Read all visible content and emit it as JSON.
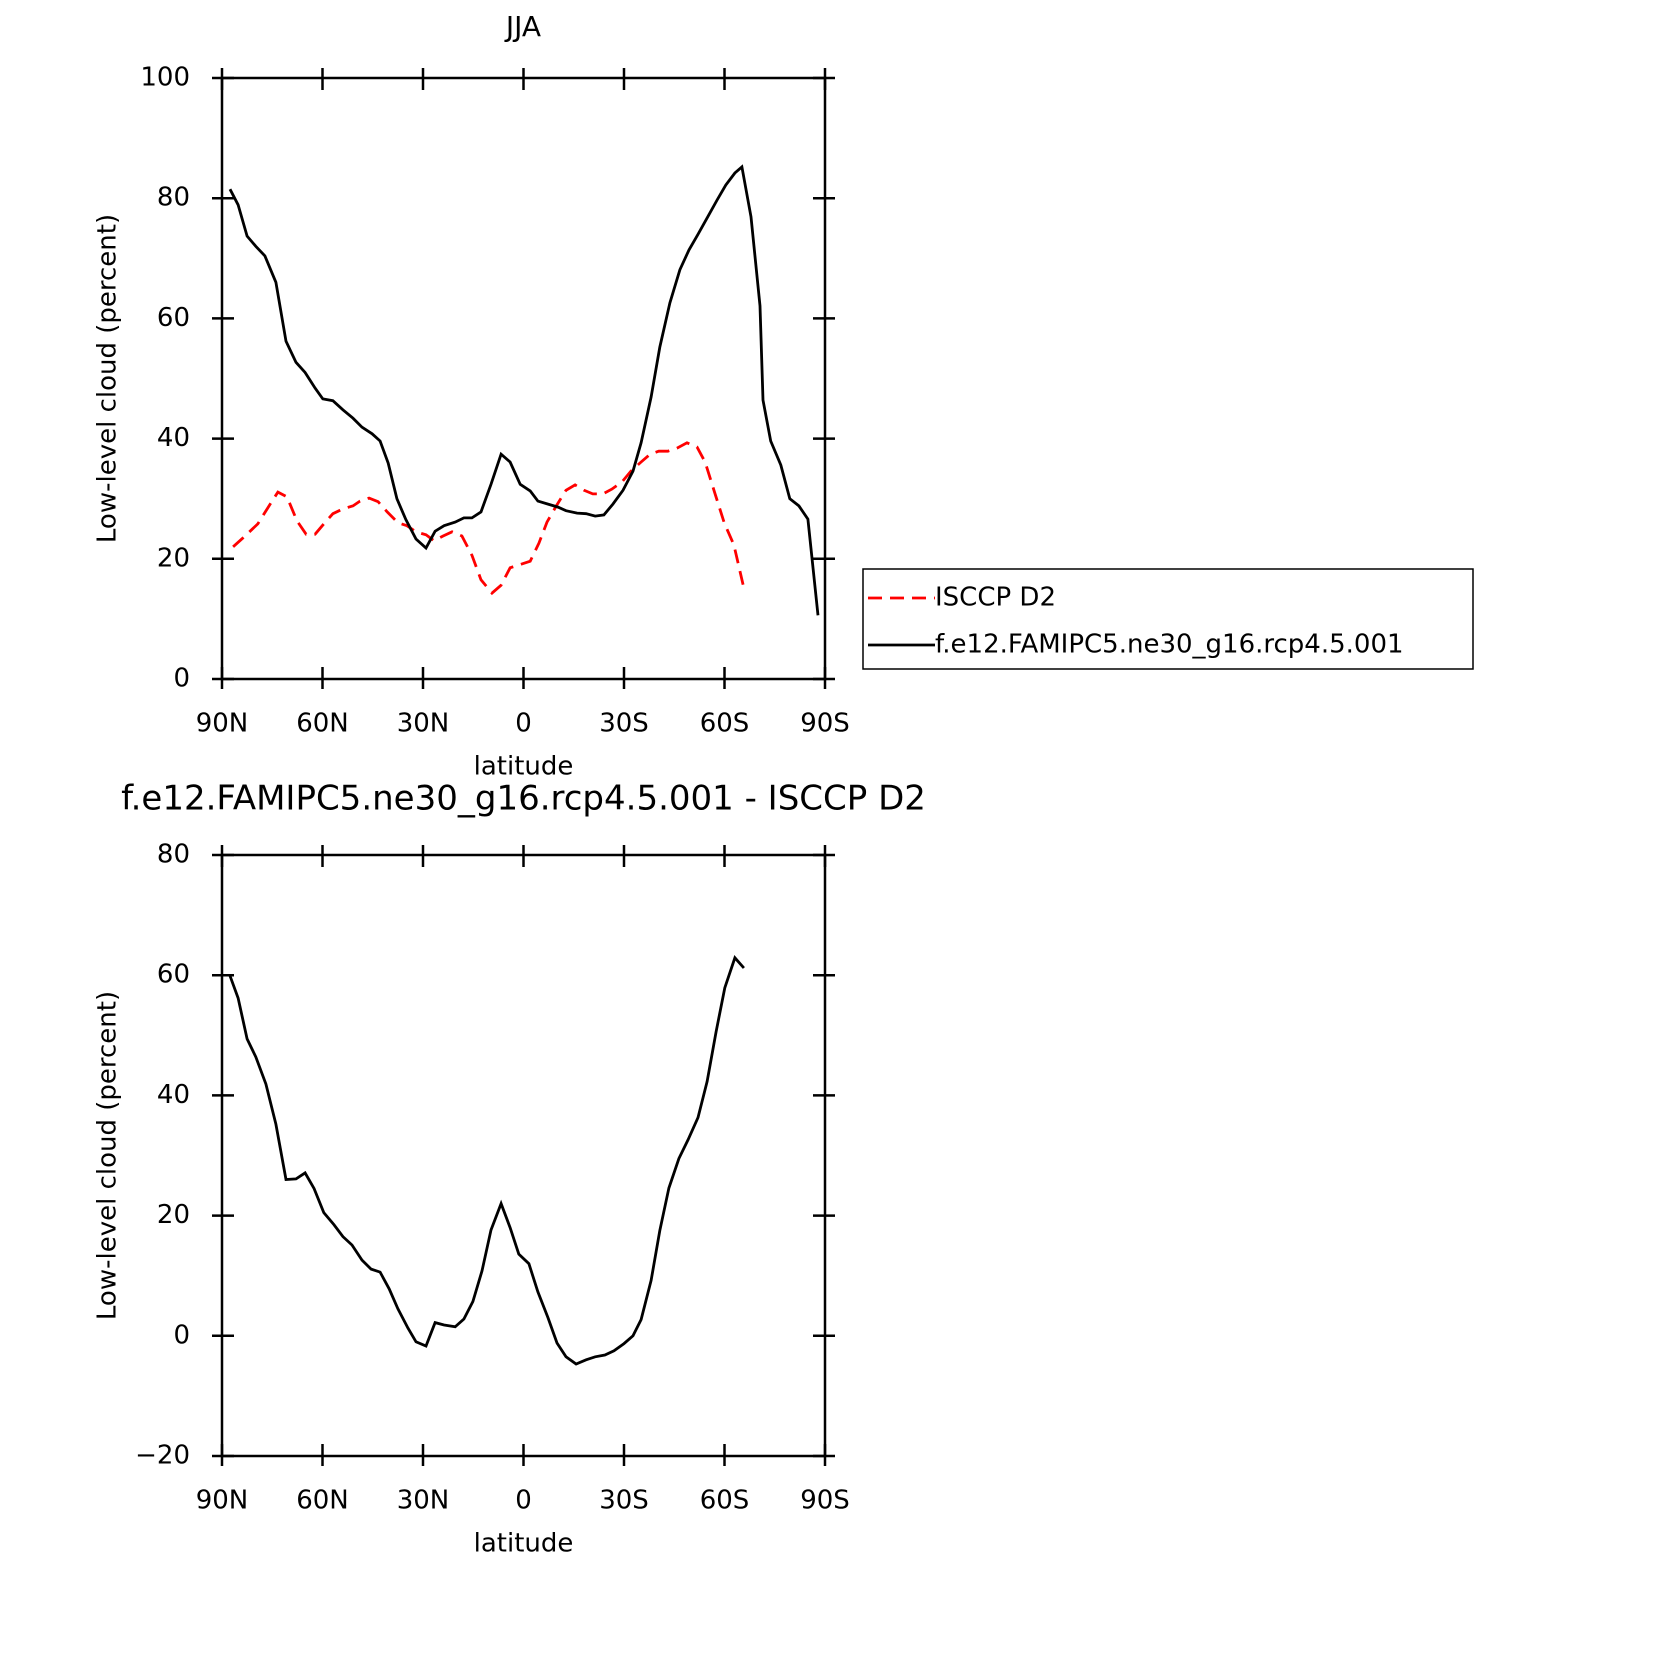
{
  "chart_data": [
    {
      "type": "line",
      "title": "JJA",
      "xlabel": "latitude",
      "ylabel": "Low-level cloud (percent)",
      "xlim": [
        90,
        -90
      ],
      "xticks": [
        {
          "value": 90,
          "label": "90N"
        },
        {
          "value": 60,
          "label": "60N"
        },
        {
          "value": 30,
          "label": "30N"
        },
        0,
        {
          "value": -30,
          "label": "30S"
        },
        {
          "value": -60,
          "label": "60S"
        },
        {
          "value": -90,
          "label": "90S"
        }
      ],
      "ylim": [
        0,
        100
      ],
      "yticks": [
        0,
        20,
        40,
        60,
        80,
        100
      ],
      "legend": "right",
      "series": [
        {
          "name": "ISCCP D2",
          "color": "#ff0000",
          "dash": true,
          "x": [
            86.7,
            83.7,
            81.6,
            79.3,
            76.3,
            73.3,
            70.6,
            67.6,
            64.9,
            62.2,
            59.6,
            56.9,
            53.9,
            50.9,
            48.8,
            46.1,
            43.4,
            40.7,
            37.5,
            34.8,
            32.1,
            29.1,
            26.7,
            24.0,
            21.3,
            18.4,
            15.4,
            12.7,
            9.4,
            6.7,
            4.0,
            0.7,
            -2.0,
            -4.6,
            -7.0,
            -10.0,
            -12.7,
            -15.4,
            -18.1,
            -20.7,
            -23.7,
            -26.4,
            -29.4,
            -32.1,
            -35.1,
            -37.8,
            -40.4,
            -43.1,
            -45.8,
            -48.8,
            -51.8,
            -54.2,
            -57.2,
            -59.9,
            -62.8,
            -65.8
          ],
          "values": [
            22,
            23.5,
            24.6,
            25.8,
            28.5,
            31.1,
            30.3,
            26.3,
            24.1,
            24.1,
            25.8,
            27.5,
            28.3,
            28.8,
            29.6,
            30.1,
            29.5,
            27.8,
            26,
            25.5,
            24.5,
            24,
            23,
            23.8,
            24.5,
            23.8,
            20.6,
            16.5,
            14.3,
            15.6,
            18.5,
            19.1,
            19.6,
            22.6,
            26.1,
            29,
            31.4,
            32.3,
            31.4,
            30.8,
            30.8,
            31.6,
            32.8,
            34.6,
            36.1,
            37.4,
            37.9,
            37.9,
            38.4,
            39.3,
            38.6,
            36.1,
            30.8,
            26,
            22.3,
            15.1
          ]
        },
        {
          "name": "f.e12.FAMIPC5.ne30_g16.rcp4.5.001",
          "color": "#000000",
          "dash": false,
          "x": [
            87.6,
            85.2,
            82.5,
            79.9,
            77.2,
            73.9,
            70.9,
            67.9,
            65.2,
            62.2,
            59.9,
            56.9,
            53.9,
            50.9,
            48.2,
            45.2,
            42.8,
            40.4,
            37.8,
            35.1,
            32.1,
            29.1,
            26.4,
            23.7,
            20.4,
            17.8,
            15.4,
            12.7,
            9.7,
            6.7,
            4.0,
            1.0,
            -2.0,
            -4.3,
            -7.3,
            -10.3,
            -12.7,
            -16.0,
            -18.7,
            -21.4,
            -24.0,
            -26.7,
            -29.7,
            -32.7,
            -35.1,
            -38.1,
            -40.7,
            -43.7,
            -46.7,
            -49.4,
            -52.1,
            -55.1,
            -57.8,
            -60.4,
            -63.1,
            -65.2,
            -67.9,
            -70.6,
            -71.5,
            -73.8,
            -76.8,
            -79.5,
            -82.2,
            -84.9,
            -87.9
          ],
          "values": [
            81.5,
            78.9,
            73.7,
            72,
            70.4,
            66,
            56.2,
            52.7,
            51,
            48.4,
            46.6,
            46.3,
            44.8,
            43.4,
            41.9,
            40.8,
            39.6,
            35.9,
            30,
            26.5,
            23.3,
            21.8,
            24.6,
            25.5,
            26.1,
            26.8,
            26.8,
            27.8,
            32.4,
            37.4,
            36.1,
            32.4,
            31.3,
            29.6,
            29.1,
            28.6,
            28,
            27.6,
            27.5,
            27.1,
            27.3,
            29.1,
            31.4,
            34.6,
            39.3,
            46.9,
            55.2,
            62.6,
            68.1,
            71.4,
            74,
            77,
            79.7,
            82.2,
            84.2,
            85.2,
            76.9,
            62.1,
            46.4,
            39.6,
            35.6,
            30,
            28.8,
            26.6,
            10.6
          ]
        }
      ]
    },
    {
      "type": "line",
      "title": "f.e12.FAMIPC5.ne30_g16.rcp4.5.001 - ISCCP D2",
      "xlabel": "latitude",
      "ylabel": "Low-level cloud (percent)",
      "xlim": [
        90,
        -90
      ],
      "xticks": [
        {
          "value": 90,
          "label": "90N"
        },
        {
          "value": 60,
          "label": "60N"
        },
        {
          "value": 30,
          "label": "30N"
        },
        0,
        {
          "value": -30,
          "label": "30S"
        },
        {
          "value": -60,
          "label": "60S"
        },
        {
          "value": -90,
          "label": "90S"
        }
      ],
      "ylim": [
        -20,
        80
      ],
      "yticks": [
        {
          "value": -20,
          "label": "−20"
        },
        0,
        20,
        40,
        60,
        80
      ],
      "series": [
        {
          "color": "#000000",
          "dash": false,
          "x": [
            87.6,
            85.2,
            82.5,
            79.9,
            76.9,
            73.9,
            70.9,
            67.9,
            65.2,
            62.5,
            59.6,
            56.6,
            53.9,
            51.2,
            48.2,
            45.5,
            42.8,
            40.1,
            37.5,
            34.5,
            32.1,
            29.1,
            26.4,
            23.7,
            20.4,
            17.8,
            15.1,
            12.4,
            9.7,
            6.7,
            4.0,
            1.4,
            -1.6,
            -4.3,
            -7.3,
            -10.0,
            -12.7,
            -15.7,
            -18.7,
            -21.4,
            -24.3,
            -27.0,
            -30.0,
            -32.7,
            -35.1,
            -38.1,
            -40.7,
            -43.4,
            -46.4,
            -49.1,
            -52.1,
            -54.8,
            -57.5,
            -60.1,
            -63.1,
            -65.8
          ],
          "values": [
            59.9,
            56.2,
            49.4,
            46.4,
            41.9,
            35.2,
            26,
            26.1,
            27.1,
            24.5,
            20.5,
            18.5,
            16.5,
            15.1,
            12.6,
            11.1,
            10.6,
            7.8,
            4.5,
            1.3,
            -1,
            -1.7,
            2.2,
            1.8,
            1.5,
            2.8,
            5.7,
            10.8,
            17.6,
            22,
            18,
            13.6,
            12,
            7.3,
            3,
            -1.2,
            -3.5,
            -4.7,
            -4,
            -3.5,
            -3.2,
            -2.5,
            -1.3,
            0,
            2.7,
            9.2,
            17.5,
            24.6,
            29.5,
            32.6,
            36.3,
            42.3,
            50.6,
            57.9,
            62.9,
            61.2
          ]
        }
      ]
    }
  ]
}
